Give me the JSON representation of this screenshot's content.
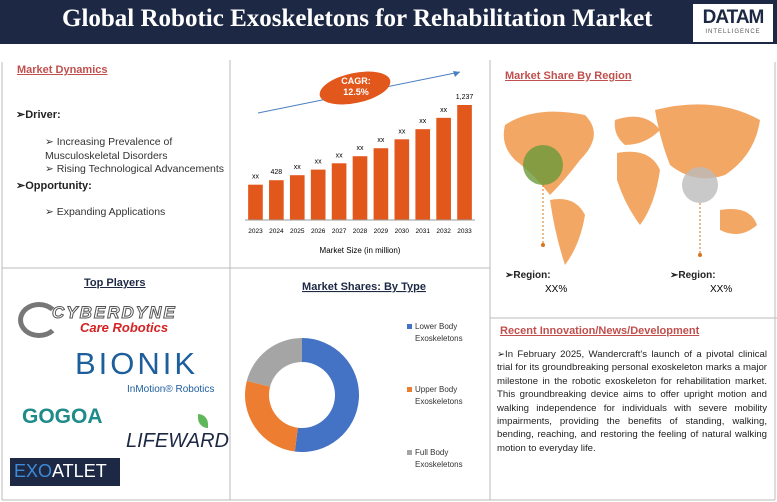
{
  "header": {
    "title": "Global Robotic Exoskeletons for Rehabilitation Market",
    "logo": "DATAM",
    "logo_sub": "INTELLIGENCE"
  },
  "market_dynamics": {
    "heading": "Market Dynamics",
    "driver_label": "Driver:",
    "drivers": [
      "Increasing Prevalence of Musculoskeletal Disorders",
      "Rising Technological Advancements"
    ],
    "opportunity_label": "Opportunity:",
    "opportunities": [
      "Expanding Applications"
    ]
  },
  "market_share_region": {
    "heading": "Market Share By Region",
    "regions": [
      {
        "label": "Region:",
        "value": "XX%"
      },
      {
        "label": "Region:",
        "value": "XX%"
      }
    ]
  },
  "top_players": {
    "heading": "Top Players",
    "logos": [
      "CYBERDYNE",
      "Care Robotics",
      "BIONIK",
      "InMotion® Robotics",
      "GOGOA",
      "LIFEWARD",
      "EXO",
      "ATLET"
    ]
  },
  "innovation": {
    "heading": "Recent Innovation/News/Development",
    "text": "In February 2025, Wandercraft's launch of a pivotal clinical trial for its groundbreaking personal exoskeleton marks a major milestone in the robotic exoskeleton for rehabilitation market. This groundbreaking device aims to offer upright motion and walking independence for individuals with severe mobility impairments, providing the benefits of standing, walking, bending, reaching, and restoring the feeling of natural walking motion to everyday life."
  },
  "chart_data": [
    {
      "type": "bar",
      "x_label": "Market Size (in million)",
      "annotation": [
        "CAGR:",
        "12.5%"
      ],
      "color": "#e2571c",
      "categories": [
        "2023",
        "2024",
        "2025",
        "2026",
        "2027",
        "2028",
        "2029",
        "2030",
        "2031",
        "2032",
        "2033"
      ],
      "values": [
        380,
        428,
        482,
        542,
        610,
        686,
        772,
        868,
        977,
        1099,
        1237
      ],
      "value_labels": [
        "xx",
        "428",
        "xx",
        "xx",
        "xx",
        "xx",
        "xx",
        "xx",
        "xx",
        "xx",
        "1,237"
      ]
    },
    {
      "type": "pie",
      "title": "Market Shares: By Type",
      "categories": [
        "Lower Body Exoskeletons",
        "Upper Body Exoskeletons",
        "Full Body Exoskeletons"
      ],
      "values": [
        52,
        27,
        21
      ],
      "colors": [
        "#4472c4",
        "#ed7d31",
        "#a5a5a5"
      ]
    }
  ]
}
